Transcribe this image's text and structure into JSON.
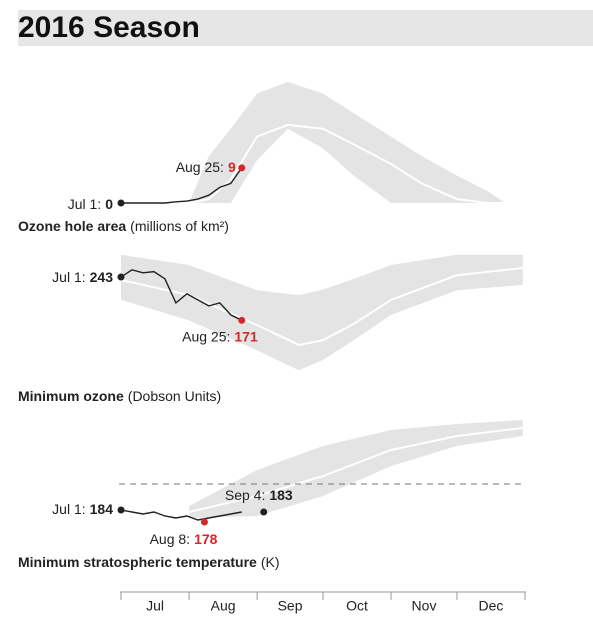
{
  "title": "2016 Season",
  "x_axis": {
    "categories": [
      "Jul",
      "Aug",
      "Sep",
      "Oct",
      "Nov",
      "Dec"
    ]
  },
  "chart_data": [
    {
      "type": "line",
      "title": "Ozone hole area",
      "units": "(millions of km²)",
      "ylim": [
        0,
        32
      ],
      "band": {
        "color": "#e4e4e4",
        "mean_color": "#ffffff",
        "x": [
          "Aug 1",
          "Aug 10",
          "Aug 20",
          "Sep 1",
          "Sep 15",
          "Oct 1",
          "Oct 15",
          "Nov 1",
          "Nov 15",
          "Dec 1",
          "Dec 15",
          "Dec 23"
        ],
        "upper": [
          0,
          12,
          19,
          28,
          31,
          28,
          23,
          17,
          12,
          7,
          3,
          0
        ],
        "mean": [
          0,
          1,
          6,
          17,
          20,
          19,
          15,
          10,
          5,
          1,
          0,
          0
        ],
        "lower": [
          0,
          0,
          0,
          11,
          19,
          14,
          7,
          0,
          0,
          0,
          0,
          0
        ]
      },
      "series": [
        {
          "color": "#222222",
          "x": [
            "Jul 1",
            "Jul 6",
            "Jul 11",
            "Jul 16",
            "Jul 21",
            "Jul 26",
            "Jul 31",
            "Aug 5",
            "Aug 10",
            "Aug 15",
            "Aug 20",
            "Aug 25"
          ],
          "values": [
            0,
            0,
            0,
            0,
            0,
            0.3,
            0.5,
            1,
            2,
            4,
            5,
            9
          ]
        }
      ],
      "annotations": [
        {
          "label": "Jul 1:",
          "date": "Jul 1",
          "value": 0,
          "color": "#222222"
        },
        {
          "label": "Aug 25:",
          "date": "Aug 25",
          "value": 9,
          "color": "#d62728"
        }
      ]
    },
    {
      "type": "line",
      "title": "Minimum ozone",
      "units": "(Dobson Units)",
      "ylim": [
        80,
        288
      ],
      "band": {
        "color": "#e4e4e4",
        "mean_color": "#ffffff",
        "x": [
          "Jul 1",
          "Aug 1",
          "Sep 1",
          "Sep 20",
          "Oct 1",
          "Oct 15",
          "Nov 1",
          "Dec 1",
          "Dec 31"
        ],
        "upper": [
          280,
          263,
          221,
          213,
          222,
          240,
          263,
          280,
          280
        ],
        "mean": [
          238,
          213,
          163,
          130,
          138,
          165,
          205,
          246,
          258
        ],
        "lower": [
          205,
          171,
          121,
          88,
          105,
          138,
          180,
          221,
          230
        ]
      },
      "series": [
        {
          "color": "#222222",
          "x": [
            "Jul 1",
            "Jul 6",
            "Jul 11",
            "Jul 16",
            "Jul 21",
            "Jul 26",
            "Jul 31",
            "Aug 5",
            "Aug 10",
            "Aug 15",
            "Aug 20",
            "Aug 25"
          ],
          "values": [
            243,
            255,
            250,
            252,
            240,
            200,
            215,
            205,
            195,
            200,
            180,
            171
          ]
        }
      ],
      "annotations": [
        {
          "label": "Jul 1:",
          "date": "Jul 1",
          "value": 243,
          "color": "#222222"
        },
        {
          "label": "Aug 25:",
          "date": "Aug 25",
          "value": 171,
          "color": "#d62728"
        }
      ]
    },
    {
      "type": "line",
      "title": "Minimum stratospheric temperature",
      "units": "(K)",
      "ylim": [
        174,
        229
      ],
      "reference_line": 197,
      "band": {
        "color": "#e4e4e4",
        "mean_color": "#ffffff",
        "x": [
          "Aug 1",
          "Sep 1",
          "Oct 1",
          "Nov 1",
          "Dec 1",
          "Dec 31"
        ],
        "upper": [
          186,
          204,
          216,
          224,
          227,
          229
        ],
        "mean": [
          183,
          191,
          201,
          214,
          221,
          225
        ],
        "lower": [
          180,
          181,
          191,
          206,
          216,
          221
        ]
      },
      "series": [
        {
          "color": "#222222",
          "x": [
            "Jul 1",
            "Jul 6",
            "Jul 11",
            "Jul 16",
            "Jul 21",
            "Jul 26",
            "Jul 31",
            "Aug 5",
            "Aug 10",
            "Aug 15",
            "Aug 20",
            "Aug 25"
          ],
          "values": [
            184,
            183,
            182,
            183,
            181,
            180,
            181,
            179,
            180,
            181,
            182,
            183
          ]
        }
      ],
      "annotations": [
        {
          "label": "Jul 1:",
          "date": "Jul 1",
          "value": 184,
          "color": "#222222"
        },
        {
          "label": "Aug 8:",
          "date": "Aug 8",
          "value": 178,
          "color": "#d62728"
        },
        {
          "label": "Sep 4:",
          "date": "Sep 4",
          "value": 183,
          "color": "#222222"
        }
      ]
    }
  ]
}
